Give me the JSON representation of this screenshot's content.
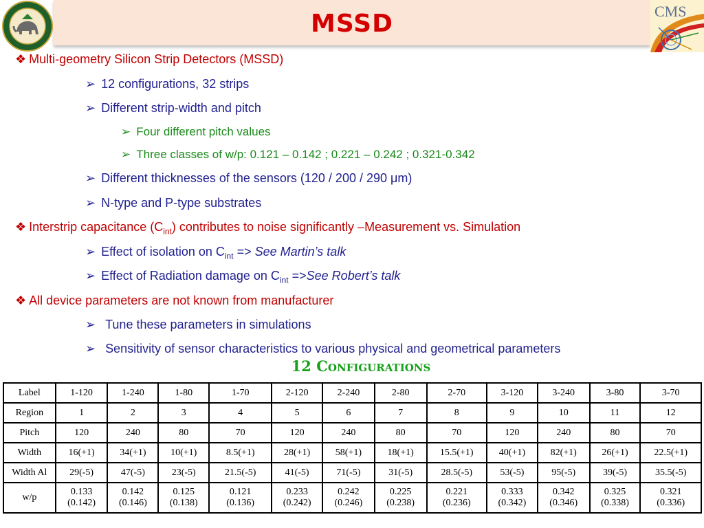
{
  "header": {
    "title": "MSSD"
  },
  "bullets": {
    "b1_text": "Multi-geometry Silicon Strip Detectors (MSSD)",
    "b1_1": "12 configurations, 32 strips",
    "b1_2": "Different strip-width and pitch",
    "b1_2_1": "Four different pitch values",
    "b1_2_2": "Three classes of w/p: 0.121 – 0.142 ; 0.221 – 0.242 ;  0.321-0.342",
    "b1_3": "Different thicknesses of the sensors (120 / 200 / 290 μm)",
    "b1_4": "N-type and P-type substrates",
    "b2_pre": "Interstrip capacitance (C",
    "b2_sub": "int",
    "b2_post": ") contributes to noise significantly –Measurement vs. Simulation",
    "b2_1_pre": "Effect of isolation on C",
    "b2_1_sub": "int",
    "b2_1_arrow": " => ",
    "b2_1_italic": "See Martin’s talk",
    "b2_2_pre": "Effect of Radiation damage on C",
    "b2_2_sub": "int",
    "b2_2_arrow": " =>",
    "b2_2_italic": "See  Robert’s talk",
    "b3_text": "All device parameters are not known from manufacturer",
    "b3_1": "Tune these parameters in simulations",
    "b3_2": "Sensitivity of sensor characteristics to various physical and geometrical parameters"
  },
  "config_title": "12 Configurations",
  "table": {
    "label": [
      "Label",
      "1-120",
      "1-240",
      "1-80",
      "1-70",
      "2-120",
      "2-240",
      "2-80",
      "2-70",
      "3-120",
      "3-240",
      "3-80",
      "3-70"
    ],
    "region": [
      "Region",
      "1",
      "2",
      "3",
      "4",
      "5",
      "6",
      "7",
      "8",
      "9",
      "10",
      "11",
      "12"
    ],
    "pitch": [
      "Pitch",
      "120",
      "240",
      "80",
      "70",
      "120",
      "240",
      "80",
      "70",
      "120",
      "240",
      "80",
      "70"
    ],
    "width": [
      "Width",
      "16(+1)",
      "34(+1)",
      "10(+1)",
      "8.5(+1)",
      "28(+1)",
      "58(+1)",
      "18(+1)",
      "15.5(+1)",
      "40(+1)",
      "82(+1)",
      "26(+1)",
      "22.5(+1)"
    ],
    "width_al": [
      "Width Al",
      "29(-5)",
      "47(-5)",
      "23(-5)",
      "21.5(-5)",
      "41(-5)",
      "71(-5)",
      "31(-5)",
      "28.5(-5)",
      "53(-5)",
      "95(-5)",
      "39(-5)",
      "35.5(-5)"
    ],
    "wp": [
      "w/p",
      "0.133",
      "0.142",
      "0.125",
      "0.121",
      "0.233",
      "0.242",
      "0.225",
      "0.221",
      "0.333",
      "0.342",
      "0.325",
      "0.321"
    ],
    "wp_alt": [
      "",
      "(0.142)",
      "(0.146)",
      "(0.138)",
      "(0.136)",
      "(0.242)",
      "(0.246)",
      "(0.238)",
      "(0.236)",
      "(0.342)",
      "(0.346)",
      "(0.338)",
      "(0.336)"
    ]
  },
  "logos": {
    "left_seal_text": "UNIVERSITY OF DELHI",
    "right_text": "CMS"
  },
  "colors": {
    "title_red": "#d40000",
    "bullet_red": "#c00000",
    "bullet_blue": "#1f1f8f",
    "bullet_green": "#1a8a1a",
    "title_band": "#fbe5d6"
  }
}
